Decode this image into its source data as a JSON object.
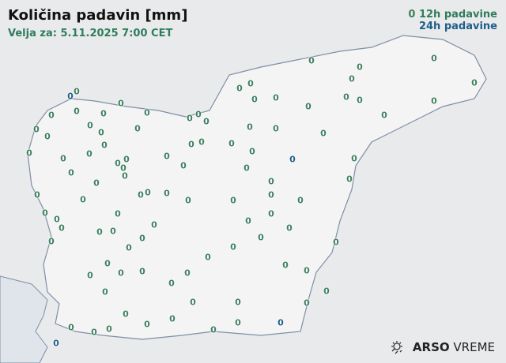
{
  "header": {
    "title": "Količina padavin [mm]",
    "valid_for": "Velja za: 5.11.2025 7:00 CET"
  },
  "legend": {
    "item_12h": "12h padavine",
    "item_24h": "24h padavine",
    "sample_value": "0",
    "color_12h": "#3f8060",
    "color_24h": "#1f5f8b"
  },
  "logo": {
    "brand": "ARSO",
    "product": "VREME",
    "icon": "sun-rain-icon"
  },
  "stations_24h": [
    [
      89,
      122
    ],
    [
      370,
      202
    ],
    [
      355,
      409
    ],
    [
      71,
      435
    ]
  ],
  "stations_12h": [
    [
      394,
      77
    ],
    [
      549,
      74
    ],
    [
      455,
      85
    ],
    [
      303,
      112
    ],
    [
      317,
      106
    ],
    [
      97,
      116
    ],
    [
      445,
      100
    ],
    [
      600,
      105
    ],
    [
      322,
      126
    ],
    [
      349,
      124
    ],
    [
      438,
      123
    ],
    [
      455,
      127
    ],
    [
      549,
      128
    ],
    [
      153,
      131
    ],
    [
      390,
      135
    ],
    [
      65,
      146
    ],
    [
      97,
      141
    ],
    [
      131,
      144
    ],
    [
      186,
      143
    ],
    [
      240,
      150
    ],
    [
      251,
      145
    ],
    [
      261,
      154
    ],
    [
      114,
      159
    ],
    [
      486,
      146
    ],
    [
      46,
      164
    ],
    [
      128,
      168
    ],
    [
      174,
      163
    ],
    [
      316,
      161
    ],
    [
      349,
      163
    ],
    [
      409,
      169
    ],
    [
      60,
      173
    ],
    [
      242,
      183
    ],
    [
      255,
      180
    ],
    [
      293,
      182
    ],
    [
      132,
      184
    ],
    [
      37,
      194
    ],
    [
      80,
      201
    ],
    [
      113,
      195
    ],
    [
      211,
      198
    ],
    [
      319,
      192
    ],
    [
      448,
      201
    ],
    [
      149,
      207
    ],
    [
      160,
      202
    ],
    [
      156,
      213
    ],
    [
      232,
      210
    ],
    [
      312,
      213
    ],
    [
      90,
      219
    ],
    [
      158,
      223
    ],
    [
      122,
      232
    ],
    [
      343,
      230
    ],
    [
      442,
      227
    ],
    [
      178,
      247
    ],
    [
      187,
      244
    ],
    [
      211,
      245
    ],
    [
      238,
      254
    ],
    [
      295,
      254
    ],
    [
      343,
      247
    ],
    [
      380,
      254
    ],
    [
      47,
      247
    ],
    [
      105,
      253
    ],
    [
      57,
      270
    ],
    [
      149,
      271
    ],
    [
      314,
      280
    ],
    [
      72,
      278
    ],
    [
      195,
      285
    ],
    [
      78,
      289
    ],
    [
      126,
      294
    ],
    [
      143,
      293
    ],
    [
      343,
      271
    ],
    [
      366,
      289
    ],
    [
      180,
      302
    ],
    [
      330,
      301
    ],
    [
      425,
      307
    ],
    [
      65,
      306
    ],
    [
      295,
      313
    ],
    [
      163,
      314
    ],
    [
      136,
      334
    ],
    [
      263,
      326
    ],
    [
      361,
      336
    ],
    [
      114,
      349
    ],
    [
      153,
      346
    ],
    [
      180,
      344
    ],
    [
      237,
      346
    ],
    [
      388,
      343
    ],
    [
      217,
      359
    ],
    [
      133,
      370
    ],
    [
      413,
      369
    ],
    [
      244,
      383
    ],
    [
      301,
      383
    ],
    [
      388,
      384
    ],
    [
      90,
      415
    ],
    [
      138,
      417
    ],
    [
      159,
      398
    ],
    [
      186,
      411
    ],
    [
      218,
      404
    ],
    [
      301,
      409
    ],
    [
      270,
      418
    ],
    [
      119,
      421
    ]
  ],
  "station_value": "0"
}
